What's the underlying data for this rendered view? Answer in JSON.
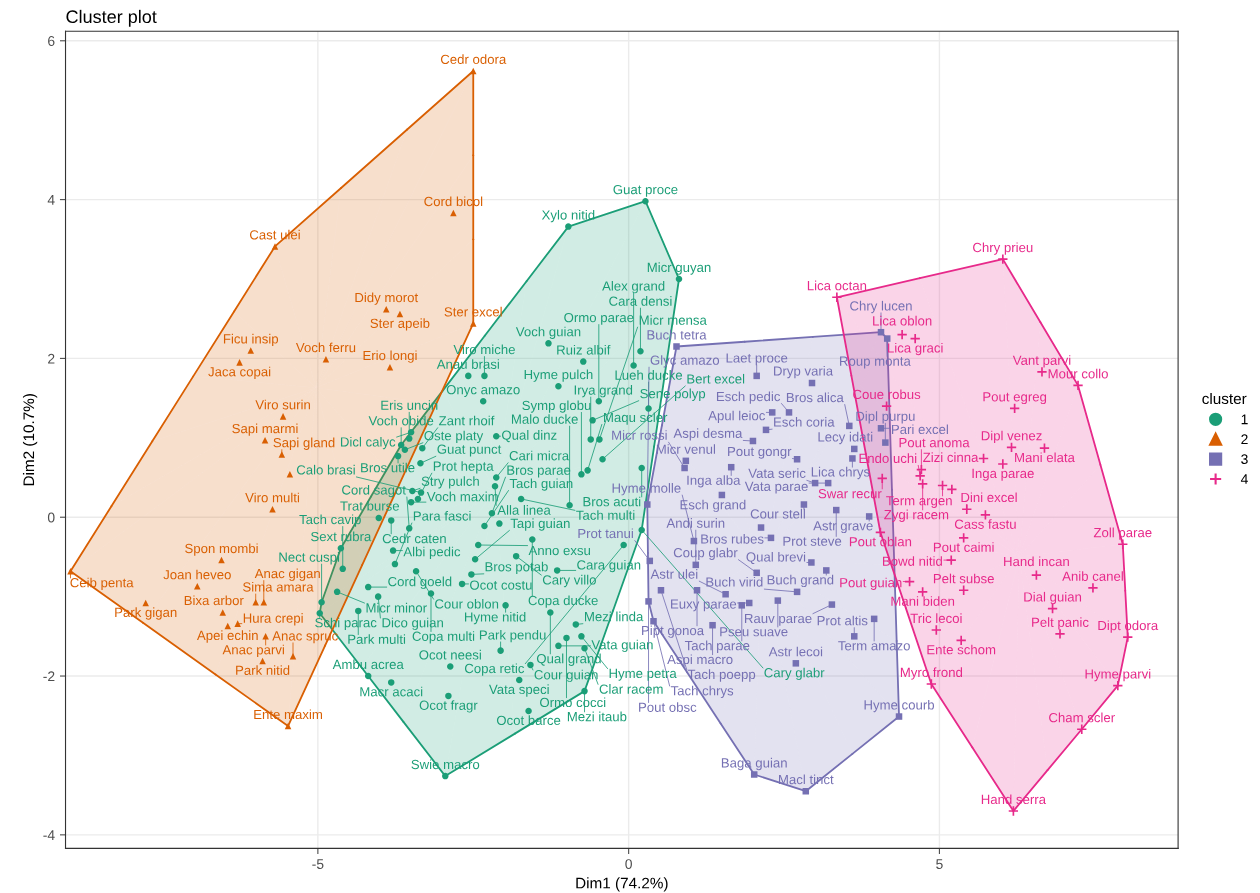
{
  "chart_data": {
    "type": "scatter",
    "title": "Cluster plot",
    "xlabel": "Dim1 (74.2%)",
    "ylabel": "Dim2 (10.7%)",
    "legend_title": "cluster",
    "legend": "right",
    "grid": true,
    "xlim": [
      -9.06,
      8.84
    ],
    "ylim": [
      -4.17,
      6.12
    ],
    "xticks": [
      -5,
      0,
      5
    ],
    "yticks": [
      -4,
      -2,
      0,
      2,
      4,
      6
    ],
    "series": [
      {
        "name": "1",
        "color": "#1b9e77",
        "marker": "circle",
        "x": [
          -2.08,
          0.27,
          -0.97,
          0.81,
          0.19,
          -1.29,
          -0.73,
          -2.58,
          0.08,
          -1.13,
          -2.32,
          -0.48,
          0.32,
          -2.34,
          -3.53,
          -3.5,
          -3.66,
          -3.6,
          -3.71,
          -3.32,
          -2.13,
          -0.58,
          -0.61,
          -0.47,
          -0.42,
          -3.35,
          -2.13,
          -3.5,
          -3.48,
          -3.34,
          -2.15,
          -0.76,
          -0.66,
          -3.39,
          -3.82,
          -2.2,
          -1.73,
          -0.95,
          -4.02,
          -3.53,
          -2.32,
          -1.55,
          -0.08,
          -2.42,
          -4.63,
          -3.79,
          0.21,
          0.21,
          -4.6,
          -2.47,
          -3.76,
          -1.81,
          -4.69,
          -4.19,
          -2.53,
          -1.15,
          -4.94,
          -4.97,
          -2.68,
          -1.98,
          -1.26,
          -4.35,
          -3.42,
          -3.18,
          -1.0,
          -0.85,
          -4.03,
          -2.06,
          -1.13,
          -3.82,
          -0.76,
          -2.87,
          -0.71,
          -4.19,
          -1.58,
          -1.76,
          -0.71,
          -2.9,
          -1.61,
          -2.95
        ],
        "values": [
          -0.08,
          3.98,
          3.66,
          3.0,
          2.09,
          2.19,
          1.96,
          1.78,
          1.91,
          1.65,
          1.78,
          1.46,
          1.37,
          1.46,
          0.99,
          1.07,
          0.91,
          0.85,
          0.77,
          0.87,
          1.02,
          1.22,
          0.98,
          0.98,
          0.73,
          0.68,
          0.5,
          0.19,
          0.33,
          0.31,
          0.39,
          0.54,
          0.59,
          0.23,
          -0.04,
          0.05,
          0.23,
          0.15,
          -0.01,
          -0.14,
          -0.11,
          -0.28,
          -0.35,
          -0.35,
          -0.39,
          -0.42,
          -0.16,
          0.62,
          -0.65,
          -0.53,
          -0.59,
          -0.49,
          -0.94,
          -0.88,
          -0.72,
          -0.67,
          -1.07,
          -1.21,
          -0.84,
          -1.11,
          -1.2,
          -1.18,
          -0.68,
          -0.96,
          -1.52,
          -1.35,
          -1.0,
          -1.68,
          -1.62,
          -2.08,
          -1.5,
          -1.88,
          -1.65,
          -2.0,
          -1.86,
          -2.05,
          -2.19,
          -2.25,
          -2.44,
          -3.26
        ],
        "value_labels": [
          null,
          "Guat proce",
          "Xylo nitid",
          "Micr guyan",
          "Cara densi",
          "Voch guian",
          "Ruiz albif",
          "Anau brasi",
          "Alex grand",
          "Hyme pulch",
          "Viro miche",
          "Ormo parae",
          "Lueh ducke",
          "Onyc amazo",
          "Eris uncin",
          "Dicl calyc",
          "Voch obide",
          "Oste platy",
          "Bros utile",
          "Zant rhoif",
          "Qual dinz",
          "Sene polyp",
          "Irya grand",
          "Micr mensa",
          "Bert excel",
          "Guat punct",
          "Cari micra",
          "Voch maxim",
          "Stry pulch",
          "Calo brasi",
          "Alla linea",
          "Symp globu",
          "Maqu scler",
          "Prot hepta",
          "Cedr caten",
          "Bros parae",
          "Tach multi",
          "Malo ducke",
          "Trat burse",
          "Cord sagot",
          "Tach guian",
          "Copa ducke",
          "Copa retic",
          "Anno exsu",
          "Sext rubra",
          "Albi pedic",
          "Cary glabr",
          "Bros acuti",
          "Tach cavip",
          "Tapi guian",
          "Para fasci",
          "Cary villo",
          "Micr minor",
          "Cord goeld",
          "Bros potab",
          "Cara guian",
          "Nect cuspi",
          "Schi parac",
          "Ocot costu",
          "Hyme nitid",
          "Qual grand",
          "Park multi",
          "Cour oblon",
          "Copa multi",
          "Ormo cocci",
          "Mezi linda",
          "Dico guian",
          "Park pendu",
          "Vata guian",
          "Macr acaci",
          "Hyme petra",
          "Ocot neesi",
          "Clar racem",
          "Ambu acrea",
          "Cour guian",
          "Vata speci",
          "Mezi itaub",
          "Ocot fragr",
          "Ocot barce",
          "Swie macro"
        ]
      },
      {
        "name": "2",
        "color": "#d95f02",
        "marker": "triangle",
        "x": [
          -5.45,
          -2.5,
          -2.82,
          -5.69,
          -3.9,
          -2.5,
          -3.68,
          -6.08,
          -3.84,
          -4.87,
          -6.26,
          -5.56,
          -5.85,
          -5.58,
          -5.73,
          -6.55,
          -6.94,
          -8.98,
          -7.77,
          -6.0,
          -6.53,
          -6.45,
          -6.29,
          -5.87,
          -5.84,
          -5.4,
          -5.89,
          -5.48
        ],
        "values": [
          0.54,
          5.62,
          3.83,
          3.41,
          2.62,
          2.44,
          2.56,
          2.1,
          1.89,
          1.99,
          1.95,
          1.27,
          0.97,
          0.79,
          0.1,
          -0.54,
          -0.87,
          -0.68,
          -1.08,
          -1.07,
          -1.2,
          -1.37,
          -1.34,
          -1.07,
          -1.5,
          -1.75,
          -1.81,
          -2.63
        ],
        "value_labels": [
          null,
          "Cedr odora",
          "Cord bicol",
          "Cast ulei",
          "Didy morot",
          "Ster excel",
          "Ster apeib",
          "Ficu insip",
          "Erio longi",
          "Voch ferru",
          "Jaca copai",
          "Viro surin",
          "Sapi marmi",
          "Sapi gland",
          "Viro multi",
          "Spon mombi",
          "Joan heveo",
          "Ceib penta",
          "Park gigan",
          "Sima amara",
          "Bixa arbor",
          "Apei echin",
          "Hura crepi",
          "Anac gigan",
          "Anac parvi",
          "Anac spruc",
          "Park nitid",
          "Ente maxim"
        ]
      },
      {
        "name": "3",
        "color": "#7570b3",
        "marker": "square",
        "x": [
          2.13,
          0.77,
          2.06,
          4.06,
          4.16,
          0.92,
          2.95,
          2.31,
          2.58,
          3.55,
          4.06,
          4.13,
          2.21,
          0.9,
          2.0,
          3.63,
          1.65,
          2.71,
          3.6,
          1.5,
          3.0,
          3.21,
          0.3,
          2.82,
          3.34,
          3.87,
          1.05,
          2.29,
          0.34,
          1.08,
          2.06,
          2.94,
          0.52,
          1.56,
          2.71,
          3.18,
          0.32,
          1.1,
          3.27,
          1.82,
          2.4,
          3.95,
          3.63,
          0.4,
          1.94,
          1.35,
          2.69,
          4.35,
          2.02,
          2.85
        ],
        "values": [
          -0.13,
          2.15,
          1.78,
          2.33,
          2.25,
          0.71,
          1.69,
          1.32,
          1.32,
          1.15,
          1.12,
          0.94,
          1.1,
          0.62,
          0.96,
          0.86,
          0.63,
          0.73,
          0.74,
          0.28,
          0.43,
          0.43,
          0.16,
          0.16,
          0.09,
          0.01,
          -0.3,
          -0.26,
          -0.55,
          -0.6,
          -0.7,
          -0.57,
          -0.92,
          -0.97,
          -0.94,
          -0.67,
          -1.06,
          -0.92,
          -1.1,
          -1.11,
          -1.05,
          -1.28,
          -1.5,
          -1.31,
          -1.08,
          -1.36,
          -1.84,
          -2.51,
          -3.24,
          -3.45
        ],
        "value_labels": [
          null,
          "Buch tetra",
          "Laet proce",
          "Chry lucen",
          "Roup monta",
          "Micr venul",
          "Dryp varia",
          "Apul leioc",
          "Esch pedic",
          "Bros alica",
          "Pari excel",
          "Dipl purpu",
          "Esch coria",
          "Micr rossi",
          "Aspi desma",
          "Lecy idati",
          "Inga alba",
          "Pout gongr",
          "Lica chrys",
          "Esch grand",
          "Vata seric",
          "Vata parae",
          "Glyc amazo",
          "Cour stell",
          "Prot steve",
          "Astr grave",
          "Hyme molle",
          "Bros rubes",
          "Prot tanui",
          "Andi surin",
          "Coup glabr",
          "Qual brevi",
          "Tach poepp",
          "Astr ulei",
          "Buch virid",
          "Buch grand",
          "Pout obsc",
          "Pipt gonoa",
          "Rauv parae",
          "Tach parae",
          "Pseu suave",
          "Term amazo",
          "Prot altis",
          "Tach chrys",
          "Euxy parae",
          "Aspi macro",
          "Astr lecoi",
          "Hyme courb",
          "Baga guian",
          "Macl tinct"
        ]
      },
      {
        "name": "4",
        "color": "#e7298a",
        "marker": "cross",
        "x": [
          5.2,
          3.35,
          6.02,
          4.4,
          4.61,
          6.65,
          7.23,
          4.15,
          6.21,
          4.69,
          6.16,
          4.71,
          5.71,
          6.69,
          6.02,
          4.73,
          4.08,
          5.05,
          5.44,
          5.74,
          7.95,
          4.05,
          5.39,
          5.19,
          6.56,
          7.47,
          5.39,
          4.73,
          4.52,
          6.82,
          5.35,
          4.95,
          6.94,
          8.03,
          7.87,
          4.87,
          7.29,
          6.19
        ],
        "values": [
          0.35,
          2.77,
          3.25,
          2.3,
          2.25,
          1.83,
          1.66,
          1.4,
          1.37,
          0.52,
          0.88,
          0.6,
          0.74,
          0.87,
          0.67,
          0.42,
          0.49,
          0.4,
          0.1,
          0.03,
          -0.34,
          -0.19,
          -0.26,
          -0.54,
          -0.73,
          -0.89,
          -0.92,
          -0.94,
          -0.81,
          -1.15,
          -1.55,
          -1.42,
          -1.47,
          -1.51,
          -2.12,
          -2.1,
          -2.67,
          -3.7
        ],
        "value_labels": [
          null,
          "Lica octan",
          "Chry prieu",
          "Lica oblon",
          "Lica graci",
          "Vant parvi",
          "Mour collo",
          "Coue robus",
          "Pout egreg",
          "Endo uchi",
          "Dipl venez",
          "Pout anoma",
          "Zizi cinna",
          "Mani elata",
          "Inga parae",
          "Zygi racem",
          "Swar recur",
          "Term argen",
          "Dini excel",
          "Cass fastu",
          "Zoll parae",
          "Pout oblan",
          "Pout caimi",
          "Bowd nitid",
          "Hand incan",
          "Anib canel",
          "Pelt subse",
          "Mani biden",
          "Pout guian",
          "Dial guian",
          "Ente schom",
          "Tric lecoi",
          "Pelt panic",
          "Dipt odora",
          "Hyme parvi",
          "Myro frond",
          "Cham scler",
          "Hand serra"
        ]
      }
    ]
  }
}
